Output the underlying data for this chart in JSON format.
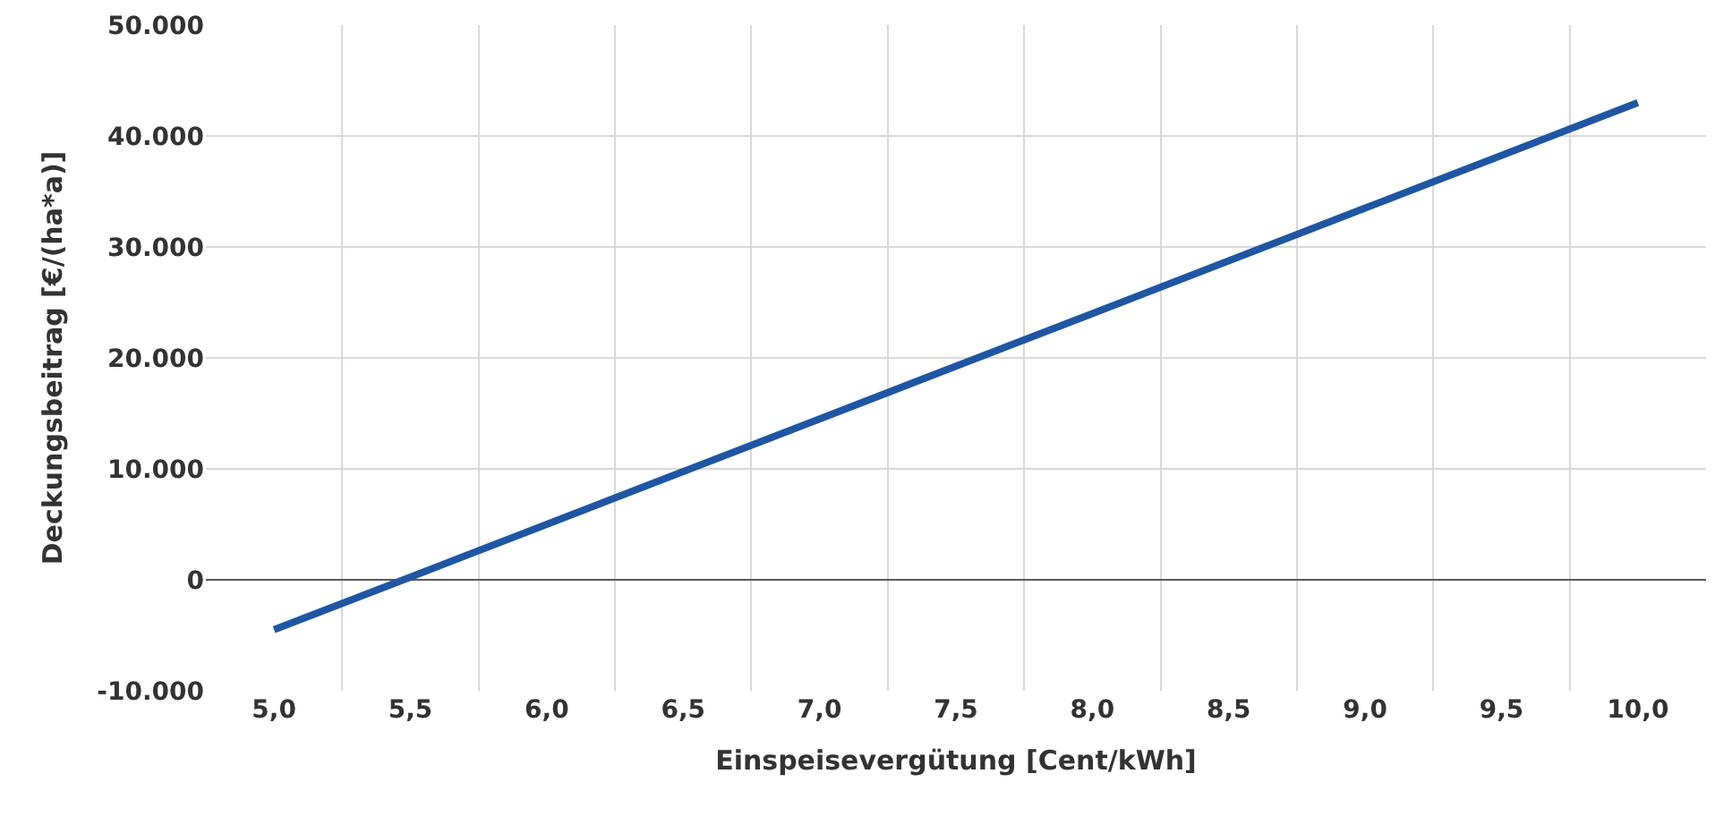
{
  "chart_data": {
    "type": "line",
    "xlabel": "Einspeisevergütung [Cent/kWh]",
    "ylabel": "Deckungsbeitrag [€/(ha*a)]",
    "categories": [
      "5,0",
      "5,5",
      "6,0",
      "6,5",
      "7,0",
      "7,5",
      "8,0",
      "8,5",
      "9,0",
      "9,5",
      "10,0"
    ],
    "series": [
      {
        "color": "#1f56a3",
        "values": [
          -4500,
          250,
          5000,
          9750,
          14500,
          19250,
          24000,
          28750,
          33500,
          38250,
          43000
        ]
      }
    ],
    "ylim": [
      -10000,
      50000
    ],
    "yticks": [
      {
        "value": -10000,
        "label": "-10.000"
      },
      0,
      {
        "value": 10000,
        "label": "10.000"
      },
      {
        "value": 20000,
        "label": "20.000"
      },
      {
        "value": 30000,
        "label": "30.000"
      },
      {
        "value": 40000,
        "label": "40.000"
      },
      {
        "value": 50000,
        "label": "50.000"
      }
    ],
    "grid": true,
    "legend": false,
    "marker": "none",
    "line_style": "solid"
  }
}
